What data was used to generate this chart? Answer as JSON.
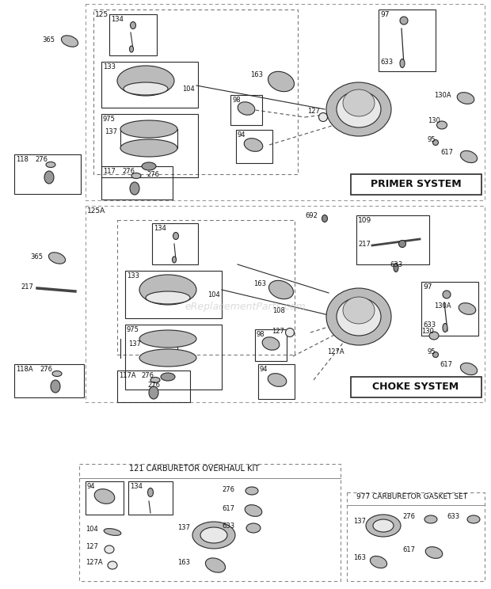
{
  "bg": "#ffffff",
  "lc": "#2a2a2a",
  "dc": "#555555",
  "fp": "#bbbbbb",
  "fi": "#e8e8e8",
  "primer_label": "PRIMER SYSTEM",
  "choke_label": "CHOKE SYSTEM",
  "kit1_label": "121 CARBURETOR OVERHAUL KIT",
  "kit2_label": "977 CARBURETOR GASKET SET",
  "watermark": "eReplacementParts.com",
  "fig_w": 6.2,
  "fig_h": 7.44
}
